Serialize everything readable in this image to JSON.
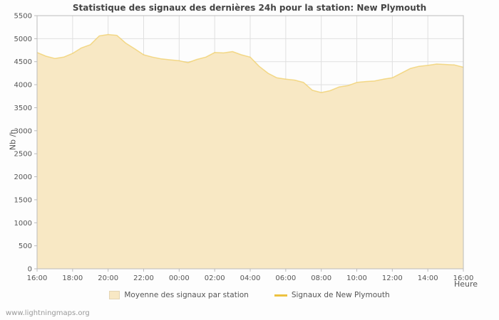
{
  "watermark": "www.lightningmaps.org",
  "chart_data": {
    "type": "area",
    "title": "Statistique des signaux des dernières 24h pour la station: New Plymouth",
    "xlabel": "Heure",
    "ylabel": "Nb /h",
    "xlim_hours": [
      0,
      24
    ],
    "ylim": [
      0,
      5500
    ],
    "grid": true,
    "colors": {
      "area_fill": "#f8e8c4",
      "area_edge": "#edc240",
      "gridline": "#e0e0e0",
      "frame": "#bbbbbb",
      "tick_text": "#555555"
    },
    "y_ticks": [
      0,
      500,
      1000,
      1500,
      2000,
      2500,
      3000,
      3500,
      4000,
      4500,
      5000,
      5500
    ],
    "x_ticks": [
      {
        "hour": 0,
        "label": "16:00"
      },
      {
        "hour": 2,
        "label": "18:00"
      },
      {
        "hour": 4,
        "label": "20:00"
      },
      {
        "hour": 6,
        "label": "22:00"
      },
      {
        "hour": 8,
        "label": "00:00"
      },
      {
        "hour": 10,
        "label": "02:00"
      },
      {
        "hour": 12,
        "label": "04:00"
      },
      {
        "hour": 14,
        "label": "06:00"
      },
      {
        "hour": 16,
        "label": "08:00"
      },
      {
        "hour": 18,
        "label": "10:00"
      },
      {
        "hour": 20,
        "label": "12:00"
      },
      {
        "hour": 22,
        "label": "14:00"
      },
      {
        "hour": 24,
        "label": "16:00"
      }
    ],
    "series": [
      {
        "name": "Moyenne des signaux par station",
        "type": "area",
        "color": "#edc240",
        "fill": "#f8e8c4",
        "x_start_hour": 0,
        "x_step_hours": 0.5,
        "values": [
          4700,
          4620,
          4570,
          4600,
          4680,
          4800,
          4870,
          5060,
          5090,
          5070,
          4900,
          4780,
          4650,
          4600,
          4560,
          4540,
          4520,
          4480,
          4550,
          4600,
          4700,
          4690,
          4720,
          4650,
          4600,
          4400,
          4250,
          4150,
          4120,
          4100,
          4050,
          3880,
          3830,
          3870,
          3950,
          3980,
          4050,
          4070,
          4080,
          4120,
          4150,
          4250,
          4350,
          4400,
          4420,
          4450,
          4440,
          4430,
          4380
        ]
      },
      {
        "name": "Signaux de New Plymouth",
        "type": "line",
        "color": "#edc240"
      }
    ],
    "legend": [
      {
        "label": "Moyenne des signaux par station",
        "swatch": "area",
        "color": "#f8e8c4"
      },
      {
        "label": "Signaux de New Plymouth",
        "swatch": "line",
        "color": "#edc240"
      }
    ]
  }
}
